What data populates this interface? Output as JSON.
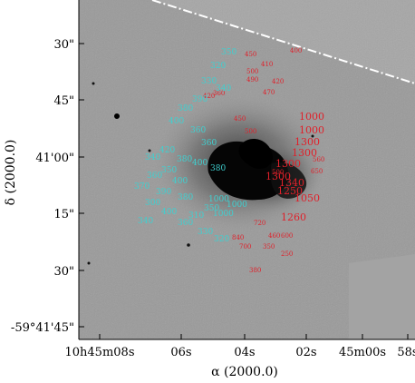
{
  "figure": {
    "xlabel": "α (2000.0)",
    "ylabel": "δ (2000.0)",
    "x_ticks": [
      "10h45m08s",
      "06s",
      "04s",
      "02s",
      "45m00s",
      "58s"
    ],
    "y_ticks": [
      "30\"",
      "45\"",
      "41'00\"",
      "15\"",
      "30\"",
      "-59°41'45\""
    ],
    "colors": {
      "cyan_labels": "#3fd0d0",
      "red_labels": "#e0202a",
      "sky": "#9a9a9a",
      "background_pad": "#a6a6a6"
    }
  },
  "labels": {
    "red": [
      "400",
      "450",
      "410",
      "500",
      "490",
      "420",
      "360",
      "420",
      "470",
      "450",
      "500",
      "1000",
      "1000",
      "1300",
      "1300",
      "1300",
      "500",
      "650",
      "1300",
      "1340",
      "1250",
      "1050",
      "1260",
      "720",
      "840",
      "700",
      "460",
      "600",
      "350",
      "250",
      "380",
      "560"
    ],
    "cyan": [
      "350",
      "320",
      "330",
      "340",
      "390",
      "380",
      "400",
      "360",
      "360",
      "420",
      "340",
      "380",
      "350",
      "360",
      "400",
      "370",
      "390",
      "380",
      "300",
      "400",
      "340",
      "360",
      "330",
      "320",
      "310",
      "350",
      "1000",
      "1000",
      "1000",
      "380",
      "400"
    ]
  }
}
